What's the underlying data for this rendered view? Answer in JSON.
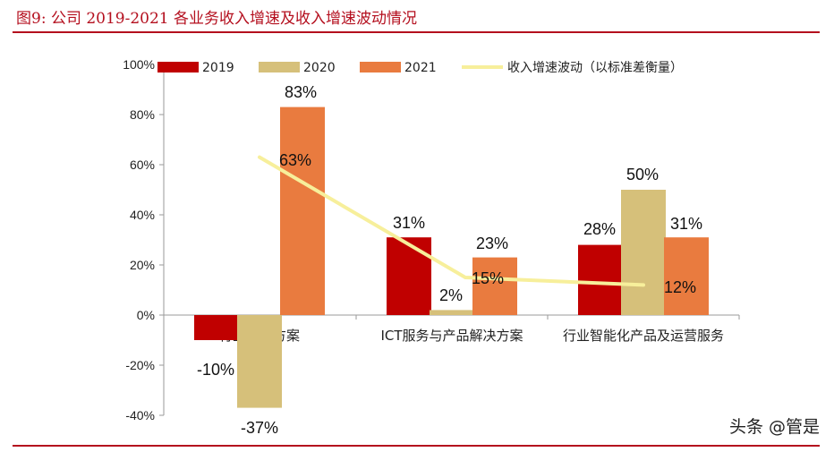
{
  "figure": {
    "title": "图9:  公司 2019-2021 各业务收入增速及收入增速波动情况"
  },
  "watermark": "头条 @管是",
  "colors": {
    "s2019": "#c00000",
    "s2020": "#d6c07a",
    "s2021": "#e97b3f",
    "line": "#f7ef9b",
    "accent": "#b40f1e"
  },
  "chart_data": {
    "type": "bar",
    "categories": [
      "行业解决方案",
      "ICT服务与产品解决方案",
      "行业智能化产品及运营服务"
    ],
    "series": [
      {
        "name": "2019",
        "values": [
          -10,
          31,
          28
        ],
        "labels": [
          "-10%",
          "31%",
          "28%"
        ]
      },
      {
        "name": "2020",
        "values": [
          -37,
          2,
          50
        ],
        "labels": [
          "-37%",
          "2%",
          "50%"
        ]
      },
      {
        "name": "2021",
        "values": [
          83,
          23,
          31
        ],
        "labels": [
          "83%",
          "23%",
          "31%"
        ]
      }
    ],
    "line_series": {
      "name": "收入增速波动（以标准差衡量）",
      "values": [
        63,
        15,
        12
      ],
      "labels": [
        "63%",
        "15%",
        "12%"
      ]
    },
    "yticks": [
      "100%",
      "80%",
      "60%",
      "40%",
      "20%",
      "0%",
      "-20%",
      "-40%"
    ],
    "ylim": [
      -40,
      100
    ],
    "legend_position": "top",
    "grid": false
  }
}
